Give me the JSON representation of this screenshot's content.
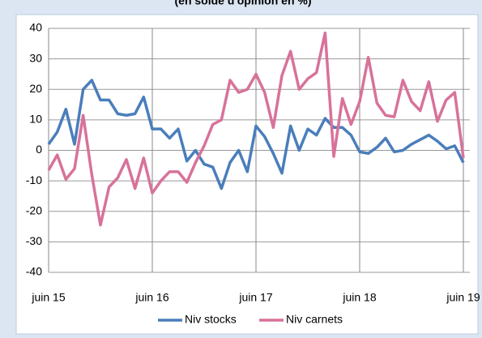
{
  "chart_data": {
    "type": "line",
    "subtitle": "(en solde d'opinion en %)",
    "categories": [
      "juin 15",
      null,
      null,
      null,
      null,
      null,
      null,
      null,
      null,
      null,
      null,
      null,
      "juin 16",
      null,
      null,
      null,
      null,
      null,
      null,
      null,
      null,
      null,
      null,
      null,
      "juin 17",
      null,
      null,
      null,
      null,
      null,
      null,
      null,
      null,
      null,
      null,
      null,
      "juin 18",
      null,
      null,
      null,
      null,
      null,
      null,
      null,
      null,
      null,
      null,
      null,
      "juin 19"
    ],
    "series": [
      {
        "name": "Niv stocks",
        "color": "#4a7ebb",
        "values": [
          2,
          6,
          13.5,
          2,
          20,
          23,
          16.5,
          16.5,
          12,
          11.5,
          12,
          17.5,
          7,
          7,
          4,
          7,
          -3.5,
          0,
          -4.5,
          -5.5,
          -12.5,
          -4,
          0,
          -7,
          8,
          4.5,
          -1,
          -7.5,
          8,
          0,
          7,
          5,
          10.5,
          7.5,
          7.5,
          5,
          -0.5,
          -1,
          1,
          4,
          -0.5,
          0,
          2,
          3.5,
          5,
          3,
          0.5,
          1.5,
          -4
        ]
      },
      {
        "name": "Niv carnets",
        "color": "#d8729a",
        "values": [
          -6.5,
          -1.5,
          -9.5,
          -6,
          11.5,
          -8,
          -24.5,
          -12,
          -9,
          -3,
          -12.5,
          -2.5,
          -14,
          -10,
          -7,
          -7,
          -10.5,
          -4,
          1.5,
          8.5,
          10,
          23,
          19,
          20,
          25,
          19,
          7.5,
          24.5,
          32.5,
          20,
          23.5,
          25.5,
          38.5,
          -2,
          17,
          8.5,
          16,
          30.5,
          15.5,
          11.5,
          11,
          23,
          16,
          13,
          22.5,
          9.5,
          16.5,
          19,
          -2.5
        ]
      }
    ],
    "ylim": [
      -40,
      40
    ],
    "yticks": [
      -40,
      -30,
      -20,
      -10,
      0,
      10,
      20,
      30,
      40
    ],
    "grid": true,
    "legend": "bottom"
  }
}
